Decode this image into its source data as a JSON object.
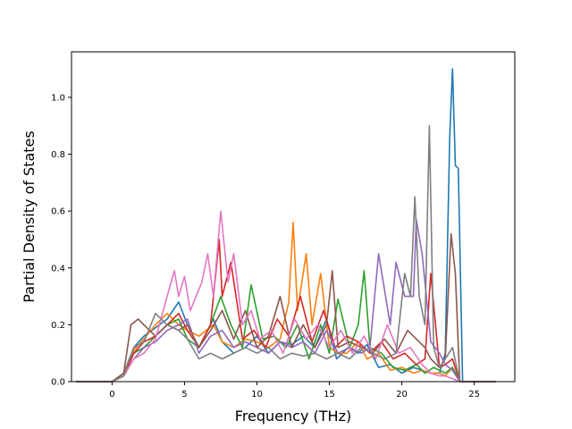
{
  "chart_data": {
    "type": "line",
    "title": "",
    "xlabel": "Frequency (THz)",
    "ylabel": "Partial Density of States",
    "xlim": [
      -2.8,
      27.8
    ],
    "ylim": [
      0.0,
      1.16
    ],
    "xticks": [
      0,
      5,
      10,
      15,
      20,
      25
    ],
    "yticks": [
      0.0,
      0.2,
      0.4,
      0.6,
      0.8,
      1.0
    ],
    "xtick_labels": [
      "0",
      "5",
      "10",
      "15",
      "20",
      "25"
    ],
    "ytick_labels": [
      "0.0",
      "0.2",
      "0.4",
      "0.6",
      "0.8",
      "1.0"
    ],
    "grid": false,
    "legend": "none",
    "series": [
      {
        "color": "#1f77b4",
        "x": [
          -2.5,
          0,
          0.8,
          1.5,
          2.2,
          3,
          3.8,
          4.6,
          5.2,
          6,
          7,
          7.6,
          8.4,
          9.2,
          10,
          10.8,
          11.6,
          12.4,
          13.2,
          14,
          14.8,
          15.5,
          16.3,
          17,
          17.6,
          18.4,
          19.2,
          20,
          20.8,
          21.4,
          22,
          22.6,
          23,
          23.3,
          23.5,
          23.7,
          23.9,
          24.2,
          26.5
        ],
        "y": [
          0,
          0,
          0.03,
          0.12,
          0.16,
          0.19,
          0.22,
          0.28,
          0.2,
          0.12,
          0.22,
          0.14,
          0.1,
          0.12,
          0.16,
          0.1,
          0.14,
          0.13,
          0.16,
          0.12,
          0.22,
          0.08,
          0.12,
          0.1,
          0.13,
          0.05,
          0.06,
          0.03,
          0.05,
          0.04,
          0.03,
          0.03,
          0.1,
          0.85,
          1.1,
          0.76,
          0.75,
          0,
          0
        ]
      },
      {
        "color": "#ff7f0e",
        "x": [
          -2.5,
          0,
          0.8,
          1.5,
          2.2,
          3,
          3.8,
          4.6,
          5.2,
          6,
          7,
          7.6,
          8.4,
          9.2,
          10,
          10.8,
          11.6,
          12.2,
          12.5,
          12.8,
          13.4,
          13.8,
          14.4,
          15,
          15.6,
          16.2,
          17,
          17.6,
          18.4,
          19.2,
          20,
          20.8,
          21.4,
          22,
          22.6,
          23,
          23.5,
          24,
          26.5
        ],
        "y": [
          0,
          0,
          0.03,
          0.11,
          0.15,
          0.2,
          0.24,
          0.2,
          0.18,
          0.16,
          0.2,
          0.14,
          0.12,
          0.15,
          0.14,
          0.12,
          0.15,
          0.28,
          0.56,
          0.25,
          0.45,
          0.2,
          0.38,
          0.12,
          0.1,
          0.1,
          0.14,
          0.08,
          0.1,
          0.04,
          0.05,
          0.03,
          0.04,
          0.03,
          0.03,
          0.02,
          0.05,
          0,
          0
        ]
      },
      {
        "color": "#2ca02c",
        "x": [
          -2.5,
          0,
          0.8,
          1.5,
          2.2,
          3,
          3.8,
          4.6,
          5.2,
          6,
          6.8,
          7.5,
          8.2,
          9,
          9.6,
          10.4,
          11.2,
          12,
          12.8,
          13.6,
          14.4,
          15,
          15.6,
          16.4,
          17,
          17.4,
          17.8,
          18.6,
          19.4,
          20.2,
          21,
          21.6,
          22.2,
          23,
          23.5,
          24,
          26.5
        ],
        "y": [
          0,
          0,
          0.02,
          0.1,
          0.12,
          0.16,
          0.2,
          0.22,
          0.15,
          0.12,
          0.2,
          0.3,
          0.2,
          0.12,
          0.34,
          0.15,
          0.16,
          0.12,
          0.2,
          0.08,
          0.2,
          0.1,
          0.29,
          0.12,
          0.2,
          0.39,
          0.12,
          0.1,
          0.05,
          0.04,
          0.06,
          0.03,
          0.05,
          0.03,
          0.05,
          0,
          0
        ]
      },
      {
        "color": "#d62728",
        "x": [
          -2.5,
          0,
          0.8,
          1.5,
          2.2,
          3,
          3.8,
          4.6,
          5.2,
          6,
          6.8,
          7.4,
          7.6,
          8.2,
          9,
          9.8,
          10.6,
          11.4,
          12.2,
          13,
          13.8,
          14.6,
          15.4,
          16.2,
          17,
          17.8,
          18.6,
          19.4,
          20.2,
          21,
          21.6,
          22,
          22.6,
          23,
          23.5,
          24,
          26.5
        ],
        "y": [
          0,
          0,
          0.02,
          0.1,
          0.14,
          0.16,
          0.2,
          0.24,
          0.18,
          0.12,
          0.2,
          0.5,
          0.3,
          0.42,
          0.15,
          0.18,
          0.12,
          0.22,
          0.16,
          0.3,
          0.14,
          0.25,
          0.12,
          0.16,
          0.14,
          0.1,
          0.14,
          0.08,
          0.1,
          0.06,
          0.08,
          0.38,
          0.05,
          0.06,
          0.08,
          0,
          0
        ]
      },
      {
        "color": "#9467bd",
        "x": [
          -2.5,
          0,
          0.8,
          1.5,
          2.2,
          3,
          3.8,
          4.6,
          5.2,
          6,
          6.8,
          7.6,
          8.4,
          9.2,
          10,
          10.8,
          11.6,
          12.4,
          13.2,
          14,
          14.8,
          15.6,
          16.4,
          17.2,
          17.8,
          18.4,
          19.2,
          19.6,
          20.2,
          20.8,
          21,
          21.4,
          22,
          22.6,
          23,
          23.5,
          24,
          26.5
        ],
        "y": [
          0,
          0,
          0.02,
          0.08,
          0.12,
          0.14,
          0.18,
          0.2,
          0.22,
          0.1,
          0.16,
          0.18,
          0.12,
          0.14,
          0.12,
          0.1,
          0.14,
          0.12,
          0.14,
          0.1,
          0.18,
          0.1,
          0.12,
          0.1,
          0.12,
          0.45,
          0.2,
          0.42,
          0.3,
          0.3,
          0.57,
          0.45,
          0.14,
          0.1,
          0.06,
          0.04,
          0,
          0
        ]
      },
      {
        "color": "#8c564b",
        "x": [
          -2.5,
          0,
          0.8,
          1.3,
          1.8,
          2.2,
          3,
          3.8,
          4.6,
          5.2,
          6,
          6.8,
          7.6,
          8.4,
          9.2,
          10,
          10.8,
          11.6,
          12.4,
          13.2,
          14,
          14.8,
          15.2,
          15.6,
          16.4,
          17.2,
          18,
          18.8,
          19.6,
          20.4,
          21,
          21.6,
          22,
          22.6,
          23,
          23.4,
          23.7,
          24,
          26.5
        ],
        "y": [
          0,
          0,
          0.03,
          0.2,
          0.22,
          0.2,
          0.16,
          0.2,
          0.18,
          0.2,
          0.12,
          0.18,
          0.25,
          0.15,
          0.25,
          0.12,
          0.16,
          0.3,
          0.12,
          0.2,
          0.12,
          0.2,
          0.39,
          0.12,
          0.14,
          0.12,
          0.1,
          0.15,
          0.1,
          0.18,
          0.15,
          0.12,
          0.08,
          0.05,
          0.08,
          0.52,
          0.38,
          0,
          0
        ]
      },
      {
        "color": "#e377c2",
        "x": [
          -2.5,
          0,
          0.8,
          1.5,
          2.2,
          3,
          3.8,
          4.3,
          4.6,
          5,
          5.4,
          5.8,
          6.2,
          6.6,
          7,
          7.5,
          8,
          8.4,
          9,
          9.6,
          10.2,
          11,
          11.8,
          12.6,
          13.4,
          14.2,
          15,
          15.8,
          16.6,
          17.4,
          18.2,
          19,
          19.8,
          20.6,
          21.4,
          22,
          22.6,
          23,
          23.5,
          24,
          26.5
        ],
        "y": [
          0,
          0,
          0.02,
          0.08,
          0.1,
          0.15,
          0.3,
          0.39,
          0.3,
          0.37,
          0.25,
          0.3,
          0.35,
          0.45,
          0.3,
          0.6,
          0.35,
          0.45,
          0.2,
          0.25,
          0.15,
          0.18,
          0.1,
          0.22,
          0.15,
          0.2,
          0.12,
          0.18,
          0.1,
          0.16,
          0.08,
          0.2,
          0.1,
          0.12,
          0.06,
          0.03,
          0.02,
          0.02,
          0.01,
          0,
          0
        ]
      },
      {
        "color": "#7f7f7f",
        "x": [
          -2.5,
          0,
          0.8,
          1.5,
          2.2,
          3,
          3.8,
          4.6,
          5.2,
          6,
          6.8,
          7.6,
          8.4,
          9.2,
          10,
          10.8,
          11.6,
          12.4,
          13.2,
          14,
          14.8,
          15.6,
          16.4,
          17.2,
          18,
          18.8,
          19.6,
          20.2,
          20.6,
          20.9,
          21.2,
          21.6,
          21.9,
          22.2,
          22.6,
          23,
          23.5,
          24,
          26.5
        ],
        "y": [
          0,
          0,
          0.02,
          0.12,
          0.14,
          0.24,
          0.2,
          0.18,
          0.15,
          0.08,
          0.1,
          0.08,
          0.1,
          0.12,
          0.1,
          0.12,
          0.08,
          0.1,
          0.09,
          0.1,
          0.08,
          0.1,
          0.08,
          0.12,
          0.1,
          0.08,
          0.1,
          0.38,
          0.3,
          0.65,
          0.3,
          0.2,
          0.9,
          0.12,
          0.05,
          0.08,
          0.12,
          0,
          0
        ]
      }
    ]
  }
}
